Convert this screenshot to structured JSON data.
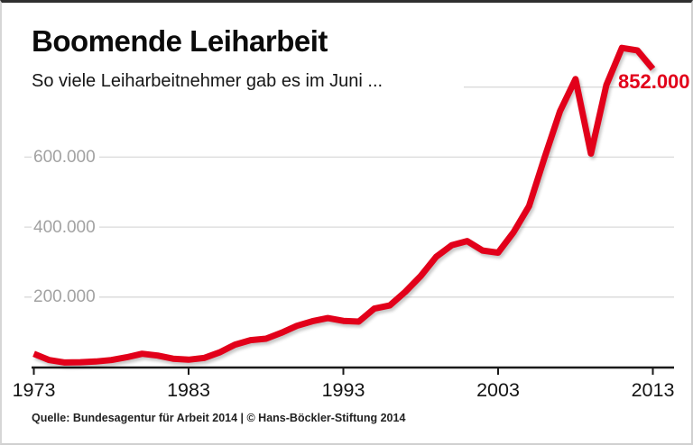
{
  "header": {
    "title": "Boomende Leiharbeit",
    "subtitle": "So viele Leiharbeitnehmer gab es im Juni ..."
  },
  "footer": {
    "source": "Quelle: Bundesagentur für Arbeit 2014 | © Hans-Böckler-Stiftung 2014"
  },
  "chart_data": {
    "type": "line",
    "title": "Boomende Leiharbeit",
    "subtitle": "So viele Leiharbeitnehmer gab es im Juni ...",
    "xlabel": "",
    "ylabel": "",
    "xlim": [
      1973,
      2013
    ],
    "ylim": [
      0,
      950000
    ],
    "grid": "horizontal",
    "legend": "none",
    "x": [
      1973,
      1974,
      1975,
      1976,
      1977,
      1978,
      1979,
      1980,
      1981,
      1982,
      1983,
      1984,
      1985,
      1986,
      1987,
      1988,
      1989,
      1990,
      1991,
      1992,
      1993,
      1994,
      1995,
      1996,
      1997,
      1998,
      1999,
      2000,
      2001,
      2002,
      2003,
      2004,
      2005,
      2006,
      2007,
      2008,
      2009,
      2010,
      2011,
      2012,
      2013
    ],
    "series": [
      {
        "name": "Leiharbeitnehmer im Juni",
        "color": "#e2001a",
        "values": [
          38000,
          20000,
          13000,
          14000,
          16000,
          20000,
          28000,
          38000,
          33000,
          24000,
          21000,
          26000,
          42000,
          64000,
          77000,
          81000,
          98000,
          118000,
          131000,
          140000,
          132000,
          130000,
          167000,
          176000,
          215000,
          260000,
          315000,
          348000,
          360000,
          333000,
          327000,
          385000,
          460000,
          598000,
          731000,
          823000,
          610000,
          806000,
          912000,
          905000,
          852000
        ]
      }
    ],
    "x_ticks": [
      {
        "value": 1973,
        "label": "1973"
      },
      {
        "value": 1983,
        "label": "1983"
      },
      {
        "value": 1993,
        "label": "1993"
      },
      {
        "value": 2003,
        "label": "2003"
      },
      {
        "value": 2013,
        "label": "2013"
      }
    ],
    "y_ticks": [
      {
        "value": 200000,
        "label": "200.000",
        "partial": false
      },
      {
        "value": 400000,
        "label": "400.000",
        "partial": false
      },
      {
        "value": 600000,
        "label": "600.000",
        "partial": false
      },
      {
        "value": 800000,
        "label": "",
        "partial": true
      }
    ],
    "annotation": {
      "text": "852.000",
      "x": 2013,
      "value": 852000
    },
    "colors": {
      "line": "#e2001a",
      "grid": "#dadada",
      "axis": "#1a1a1a",
      "y_label": "#a2a2a2",
      "x_label": "#141414",
      "annotation": "#e2001a"
    }
  }
}
